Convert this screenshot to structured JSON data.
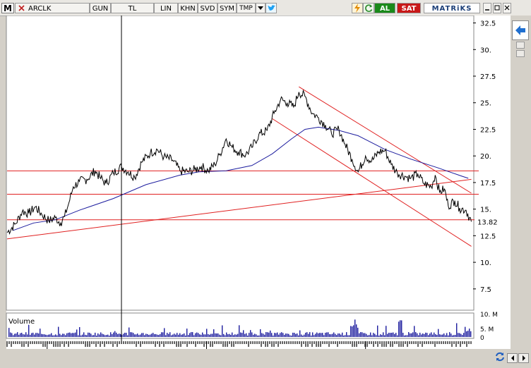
{
  "toolbar": {
    "logo": "M",
    "symbol": "ARCLK",
    "period": "GUN",
    "currency": "TL",
    "scale": "LIN",
    "btn_khn": "KHN",
    "btn_svd": "SVD",
    "btn_sym": "SYM",
    "btn_tmp": "TMP",
    "buy": "AL",
    "sell": "SAT",
    "brand": "MATRiKS"
  },
  "chart_data": {
    "type": "line",
    "symbol": "ARCLK",
    "y_ticks": [
      32.5,
      30,
      27.5,
      25,
      22.5,
      20,
      17.5,
      15,
      12.5,
      10,
      7.5
    ],
    "y_tick_labels": [
      "32.5",
      "30.",
      "27.5",
      "25.",
      "22.5",
      "20.",
      "17.5",
      "15.",
      "12.5",
      "10.",
      "7.5"
    ],
    "ylim": [
      5.5,
      33.2
    ],
    "last_value": 13.82,
    "last_value_label": "13.82",
    "x_ticks": [
      "16",
      "17",
      "18"
    ],
    "x_range": [
      "2015-10",
      "2018-09"
    ],
    "price_points": [
      [
        "2015-10-01",
        12.8
      ],
      [
        "2015-10-20",
        13.6
      ],
      [
        "2015-11-05",
        14.8
      ],
      [
        "2015-11-20",
        14.6
      ],
      [
        "2015-12-05",
        15.2
      ],
      [
        "2015-12-20",
        14.5
      ],
      [
        "2016-01-05",
        13.9
      ],
      [
        "2016-01-20",
        14.2
      ],
      [
        "2016-02-01",
        13.7
      ],
      [
        "2016-02-10",
        14.3
      ],
      [
        "2016-02-20",
        15.6
      ],
      [
        "2016-03-01",
        17.1
      ],
      [
        "2016-03-15",
        17.6
      ],
      [
        "2016-04-01",
        17.8
      ],
      [
        "2016-04-20",
        18.6
      ],
      [
        "2016-05-01",
        18.0
      ],
      [
        "2016-05-15",
        17.4
      ],
      [
        "2016-06-01",
        18.4
      ],
      [
        "2016-06-20",
        19.0
      ],
      [
        "2016-07-05",
        18.5
      ],
      [
        "2016-07-20",
        18.0
      ],
      [
        "2016-08-05",
        19.4
      ],
      [
        "2016-08-25",
        20.3
      ],
      [
        "2016-09-10",
        20.6
      ],
      [
        "2016-09-25",
        19.9
      ],
      [
        "2016-10-15",
        19.6
      ],
      [
        "2016-11-01",
        18.6
      ],
      [
        "2016-11-20",
        18.5
      ],
      [
        "2016-12-05",
        18.7
      ],
      [
        "2016-12-20",
        19.0
      ],
      [
        "2017-01-05",
        18.6
      ],
      [
        "2017-01-20",
        19.2
      ],
      [
        "2017-02-01",
        20.2
      ],
      [
        "2017-02-15",
        21.6
      ],
      [
        "2017-03-01",
        20.8
      ],
      [
        "2017-03-15",
        20.4
      ],
      [
        "2017-04-01",
        20.1
      ],
      [
        "2017-04-15",
        20.8
      ],
      [
        "2017-05-01",
        22.0
      ],
      [
        "2017-05-20",
        22.4
      ],
      [
        "2017-06-05",
        24.0
      ],
      [
        "2017-06-20",
        25.3
      ],
      [
        "2017-07-05",
        25.0
      ],
      [
        "2017-07-20",
        24.6
      ],
      [
        "2017-08-01",
        26.0
      ],
      [
        "2017-08-15",
        25.6
      ],
      [
        "2017-09-01",
        24.0
      ],
      [
        "2017-09-15",
        23.6
      ],
      [
        "2017-10-01",
        22.9
      ],
      [
        "2017-10-15",
        22.1
      ],
      [
        "2017-11-01",
        22.5
      ],
      [
        "2017-11-15",
        21.1
      ],
      [
        "2017-12-01",
        19.7
      ],
      [
        "2017-12-15",
        18.5
      ],
      [
        "2018-01-01",
        20.0
      ],
      [
        "2018-01-15",
        19.5
      ],
      [
        "2018-02-01",
        20.4
      ],
      [
        "2018-02-15",
        20.5
      ],
      [
        "2018-03-01",
        19.2
      ],
      [
        "2018-03-15",
        18.4
      ],
      [
        "2018-04-01",
        18.1
      ],
      [
        "2018-04-15",
        17.9
      ],
      [
        "2018-05-01",
        18.3
      ],
      [
        "2018-05-15",
        17.4
      ],
      [
        "2018-06-01",
        17.1
      ],
      [
        "2018-06-10",
        18.2
      ],
      [
        "2018-06-20",
        16.6
      ],
      [
        "2018-07-01",
        16.9
      ],
      [
        "2018-07-10",
        15.3
      ],
      [
        "2018-07-25",
        15.8
      ],
      [
        "2018-08-05",
        15.1
      ],
      [
        "2018-08-20",
        14.9
      ],
      [
        "2018-09-01",
        13.82
      ]
    ],
    "moving_average": [
      [
        "2015-10-15",
        13.0
      ],
      [
        "2015-12-01",
        13.7
      ],
      [
        "2016-01-20",
        14.0
      ],
      [
        "2016-03-15",
        14.9
      ],
      [
        "2016-06-01",
        16.0
      ],
      [
        "2016-08-15",
        17.3
      ],
      [
        "2016-11-01",
        18.2
      ],
      [
        "2016-12-15",
        18.5
      ],
      [
        "2017-02-15",
        18.6
      ],
      [
        "2017-04-15",
        19.1
      ],
      [
        "2017-06-01",
        20.2
      ],
      [
        "2017-07-15",
        21.6
      ],
      [
        "2017-08-15",
        22.5
      ],
      [
        "2017-09-15",
        22.7
      ],
      [
        "2017-11-01",
        22.4
      ],
      [
        "2017-12-15",
        21.9
      ],
      [
        "2018-02-15",
        20.6
      ],
      [
        "2018-04-15",
        19.7
      ],
      [
        "2018-06-15",
        18.9
      ],
      [
        "2018-08-10",
        18.1
      ],
      [
        "2018-08-25",
        17.9
      ]
    ],
    "horizontal_lines": [
      18.6,
      16.4,
      14.0
    ],
    "trend_lines": [
      {
        "from": [
          "2015-10-01",
          12.2
        ],
        "to": [
          "2018-09-01",
          17.8
        ]
      },
      {
        "from": [
          "2017-08-01",
          26.5
        ],
        "to": [
          "2018-09-01",
          16.5
        ]
      },
      {
        "from": [
          "2017-06-01",
          23.5
        ],
        "to": [
          "2018-09-01",
          11.5
        ]
      }
    ],
    "volume": {
      "label": "Volume",
      "y_tick_labels": [
        "10. M",
        "5. M",
        "0"
      ]
    },
    "colors": {
      "price": "#000000",
      "ma": "#1c1c9e",
      "lines": "#e02020",
      "cursor": "#000000"
    }
  },
  "side_panel": {
    "arrow_icon": "left-arrow-icon"
  },
  "nav": {
    "refresh_icon": "refresh-icon"
  }
}
